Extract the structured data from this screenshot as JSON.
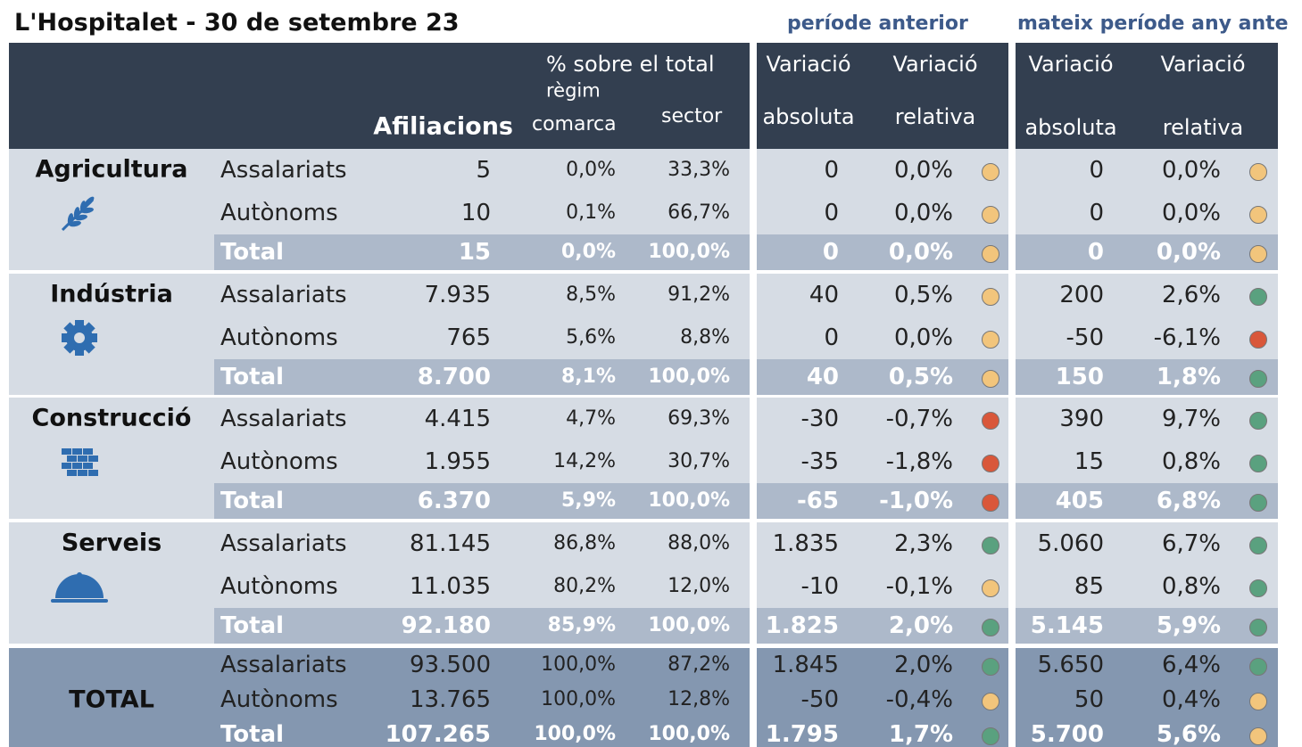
{
  "title": "L'Hospitalet - 30 de setembre 23",
  "period_headers": [
    "període anterior",
    "mateix període any ante"
  ],
  "header": {
    "pct_total": "% sobre el total",
    "regim": "règim",
    "afiliacions": "Afiliacions",
    "comarca": "comarca",
    "sector": "sector",
    "blocks": [
      [
        "Variació",
        "absoluta"
      ],
      [
        "Variació",
        "relativa"
      ],
      [
        "Variació",
        "absoluta"
      ],
      [
        "Variació",
        "relativa"
      ]
    ]
  },
  "groups": [
    {
      "name": "Agricultura",
      "rows": [
        {
          "cells": [
            "Assalariats",
            "5",
            "0,0%",
            "33,3%",
            "0",
            "0,0%",
            "0",
            "0,0%"
          ],
          "dots": [
            "#f2c57c",
            "#f2c57c"
          ]
        },
        {
          "cells": [
            "Autònoms",
            "10",
            "0,1%",
            "66,7%",
            "0",
            "0,0%",
            "0",
            "0,0%"
          ],
          "dots": [
            "#f2c57c",
            "#f2c57c"
          ]
        },
        {
          "cells": [
            "Total",
            "15",
            "0,0%",
            "100,0%",
            "0",
            "0,0%",
            "0",
            "0,0%"
          ],
          "dots": [
            "#f2c57c",
            "#f2c57c"
          ]
        }
      ]
    },
    {
      "name": "Indústria",
      "rows": [
        {
          "cells": [
            "Assalariats",
            "7.935",
            "8,5%",
            "91,2%",
            "40",
            "0,5%",
            "200",
            "2,6%"
          ],
          "dots": [
            "#f2c57c",
            "#5aa17f"
          ]
        },
        {
          "cells": [
            "Autònoms",
            "765",
            "5,6%",
            "8,8%",
            "0",
            "0,0%",
            "-50",
            "-6,1%"
          ],
          "dots": [
            "#f2c57c",
            "#d9573a"
          ]
        },
        {
          "cells": [
            "Total",
            "8.700",
            "8,1%",
            "100,0%",
            "40",
            "0,5%",
            "150",
            "1,8%"
          ],
          "dots": [
            "#f2c57c",
            "#5aa17f"
          ]
        }
      ]
    },
    {
      "name": "Construcció",
      "rows": [
        {
          "cells": [
            "Assalariats",
            "4.415",
            "4,7%",
            "69,3%",
            "-30",
            "-0,7%",
            "390",
            "9,7%"
          ],
          "dots": [
            "#d9573a",
            "#5aa17f"
          ]
        },
        {
          "cells": [
            "Autònoms",
            "1.955",
            "14,2%",
            "30,7%",
            "-35",
            "-1,8%",
            "15",
            "0,8%"
          ],
          "dots": [
            "#d9573a",
            "#5aa17f"
          ]
        },
        {
          "cells": [
            "Total",
            "6.370",
            "5,9%",
            "100,0%",
            "-65",
            "-1,0%",
            "405",
            "6,8%"
          ],
          "dots": [
            "#d9573a",
            "#5aa17f"
          ]
        }
      ]
    },
    {
      "name": "Serveis",
      "rows": [
        {
          "cells": [
            "Assalariats",
            "81.145",
            "86,8%",
            "88,0%",
            "1.835",
            "2,3%",
            "5.060",
            "6,7%"
          ],
          "dots": [
            "#5aa17f",
            "#5aa17f"
          ]
        },
        {
          "cells": [
            "Autònoms",
            "11.035",
            "80,2%",
            "12,0%",
            "-10",
            "-0,1%",
            "85",
            "0,8%"
          ],
          "dots": [
            "#f2c57c",
            "#5aa17f"
          ]
        },
        {
          "cells": [
            "Total",
            "92.180",
            "85,9%",
            "100,0%",
            "1.825",
            "2,0%",
            "5.145",
            "5,9%"
          ],
          "dots": [
            "#5aa17f",
            "#5aa17f"
          ]
        }
      ]
    }
  ],
  "total": {
    "name": "TOTAL",
    "rows": [
      {
        "cells": [
          "Assalariats",
          "93.500",
          "100,0%",
          "87,2%",
          "1.845",
          "2,0%",
          "5.650",
          "6,4%"
        ],
        "dots": [
          "#5aa17f",
          "#5aa17f"
        ]
      },
      {
        "cells": [
          "Autònoms",
          "13.765",
          "100,0%",
          "12,8%",
          "-50",
          "-0,4%",
          "50",
          "0,4%"
        ],
        "dots": [
          "#f2c57c",
          "#f2c57c"
        ]
      },
      {
        "cells": [
          "Total",
          "107.265",
          "100,0%",
          "100,0%",
          "1.795",
          "1,7%",
          "5.700",
          "5,6%"
        ],
        "dots": [
          "#5aa17f",
          "#f2c57c"
        ]
      }
    ]
  }
}
